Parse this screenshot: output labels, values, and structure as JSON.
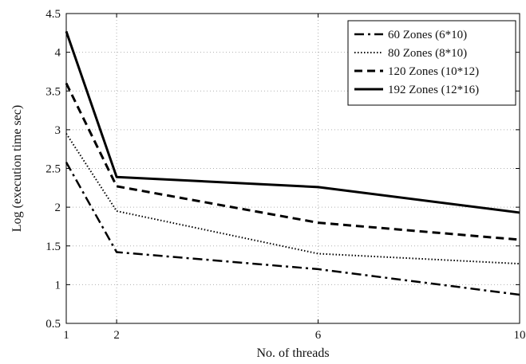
{
  "chart_data": {
    "type": "line",
    "title": "",
    "xlabel": "No. of threads",
    "ylabel": "Log (execution time sec)",
    "xlim": [
      1,
      10
    ],
    "ylim": [
      0.5,
      4.5
    ],
    "xticks": [
      1,
      2,
      6,
      10
    ],
    "xtick_labels": [
      "1",
      "2",
      "6",
      "10"
    ],
    "yticks": [
      0.5,
      1,
      1.5,
      2,
      2.5,
      3,
      3.5,
      4,
      4.5
    ],
    "ytick_labels": [
      "0.5",
      "1",
      "1.5",
      "2",
      "2.5",
      "3",
      "3.5",
      "4",
      "4.5"
    ],
    "grid": true,
    "legend_position": "top-right",
    "x": [
      1,
      2,
      6,
      10
    ],
    "series": [
      {
        "name": "60 Zones (6*10)",
        "style": "dashdot",
        "values": [
          2.58,
          1.42,
          1.2,
          0.87
        ]
      },
      {
        "name": "80 Zones (8*10)",
        "style": "dotted",
        "values": [
          2.95,
          1.95,
          1.4,
          1.27
        ]
      },
      {
        "name": "120 Zones (10*12)",
        "style": "dashed",
        "values": [
          3.6,
          2.27,
          1.8,
          1.58
        ]
      },
      {
        "name": "192 Zones (12*16)",
        "style": "solid",
        "values": [
          4.27,
          2.39,
          2.26,
          1.93
        ]
      }
    ],
    "colors": {
      "line": "#000000",
      "grid": "#b0b0b0"
    }
  }
}
